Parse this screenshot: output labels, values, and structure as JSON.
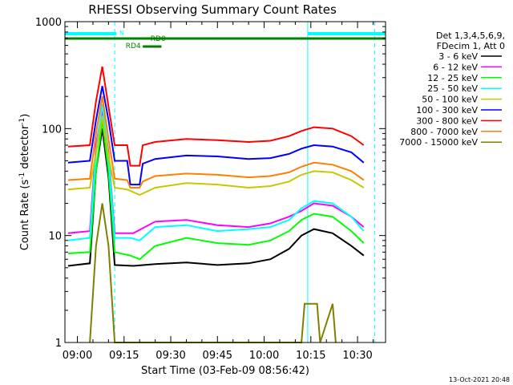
{
  "chart_data": {
    "type": "line",
    "title": "RHESSI Observing Summary Count Rates",
    "xlabel": "Start Time (03-Feb-09 08:56:42)",
    "ylabel_main": "Count Rate (s",
    "ylabel_sup1": "-1",
    "ylabel_mid": " detector",
    "ylabel_sup2": "-1",
    "ylabel_end": ")",
    "y_scale": "log",
    "ylim": [
      1,
      1000
    ],
    "xlim_min": [
      -4,
      99
    ],
    "x_ticks": [
      {
        "v": 0,
        "label": "09:00"
      },
      {
        "v": 15,
        "label": "09:15"
      },
      {
        "v": 30,
        "label": "09:30"
      },
      {
        "v": 45,
        "label": "09:45"
      },
      {
        "v": 60,
        "label": "10:00"
      },
      {
        "v": 75,
        "label": "10:15"
      },
      {
        "v": 90,
        "label": "10:30"
      }
    ],
    "y_ticks": [
      {
        "v": 1,
        "label": "1"
      },
      {
        "v": 10,
        "label": "10"
      },
      {
        "v": 100,
        "label": "100"
      },
      {
        "v": 1000,
        "label": "1000"
      }
    ],
    "legend_header": [
      "Det 1,3,4,5,6,9,",
      "FDecim 1, Att 0"
    ],
    "legend_placement": "right",
    "series": [
      {
        "name": "3 - 6 keV",
        "color": "#000000",
        "values": [
          [
            -3,
            5.2
          ],
          [
            4,
            5.5
          ],
          [
            6,
            40
          ],
          [
            8,
            100
          ],
          [
            10,
            35
          ],
          [
            12,
            5.3
          ],
          [
            18,
            5.2
          ],
          [
            25,
            5.4
          ],
          [
            35,
            5.6
          ],
          [
            45,
            5.3
          ],
          [
            55,
            5.5
          ],
          [
            62,
            6
          ],
          [
            68,
            7.5
          ],
          [
            72,
            10
          ],
          [
            76,
            11.5
          ],
          [
            82,
            10.5
          ],
          [
            88,
            8
          ],
          [
            92,
            6.5
          ]
        ]
      },
      {
        "name": "6 - 12 keV",
        "color": "#ff00ff",
        "values": [
          [
            -3,
            10.5
          ],
          [
            4,
            11
          ],
          [
            6,
            70
          ],
          [
            8,
            150
          ],
          [
            10,
            60
          ],
          [
            12,
            10.5
          ],
          [
            18,
            10.5
          ],
          [
            25,
            13.5
          ],
          [
            35,
            14
          ],
          [
            45,
            12.5
          ],
          [
            55,
            12
          ],
          [
            62,
            13
          ],
          [
            68,
            15
          ],
          [
            72,
            17
          ],
          [
            76,
            20
          ],
          [
            82,
            19
          ],
          [
            88,
            15
          ],
          [
            92,
            12
          ]
        ]
      },
      {
        "name": "12 - 25 keV",
        "color": "#00ff00",
        "values": [
          [
            -3,
            6.8
          ],
          [
            4,
            7
          ],
          [
            6,
            40
          ],
          [
            8,
            120
          ],
          [
            10,
            40
          ],
          [
            12,
            7
          ],
          [
            17,
            6.5
          ],
          [
            20,
            6
          ],
          [
            25,
            8
          ],
          [
            35,
            9.5
          ],
          [
            45,
            8.5
          ],
          [
            55,
            8.2
          ],
          [
            62,
            9
          ],
          [
            68,
            11
          ],
          [
            72,
            14
          ],
          [
            76,
            16
          ],
          [
            82,
            15
          ],
          [
            88,
            11
          ],
          [
            92,
            8.5
          ]
        ]
      },
      {
        "name": "25 - 50 keV",
        "color": "#00ffff",
        "values": [
          [
            -3,
            9
          ],
          [
            4,
            9.5
          ],
          [
            6,
            60
          ],
          [
            8,
            170
          ],
          [
            10,
            55
          ],
          [
            12,
            9.5
          ],
          [
            17,
            9.5
          ],
          [
            20,
            9
          ],
          [
            25,
            12
          ],
          [
            35,
            12.5
          ],
          [
            45,
            11
          ],
          [
            55,
            11.5
          ],
          [
            62,
            12
          ],
          [
            68,
            14
          ],
          [
            72,
            18
          ],
          [
            76,
            21
          ],
          [
            82,
            20
          ],
          [
            88,
            15
          ],
          [
            92,
            11
          ]
        ]
      },
      {
        "name": "50 - 100 keV",
        "color": "#c8c800",
        "values": [
          [
            -3,
            27
          ],
          [
            4,
            28
          ],
          [
            6,
            60
          ],
          [
            8,
            130
          ],
          [
            10,
            55
          ],
          [
            12,
            28
          ],
          [
            16,
            27
          ],
          [
            20,
            24
          ],
          [
            25,
            28
          ],
          [
            35,
            31
          ],
          [
            45,
            30
          ],
          [
            55,
            28
          ],
          [
            62,
            29
          ],
          [
            68,
            32
          ],
          [
            72,
            37
          ],
          [
            76,
            40
          ],
          [
            82,
            39
          ],
          [
            88,
            33
          ],
          [
            92,
            28
          ]
        ]
      },
      {
        "name": "100 - 300 keV",
        "color": "#0000ff",
        "values": [
          [
            -3,
            48
          ],
          [
            4,
            50
          ],
          [
            6,
            120
          ],
          [
            8,
            250
          ],
          [
            10,
            120
          ],
          [
            12,
            50
          ],
          [
            16,
            50
          ],
          [
            17,
            30
          ],
          [
            20,
            30
          ],
          [
            21,
            47
          ],
          [
            25,
            52
          ],
          [
            35,
            56
          ],
          [
            45,
            55
          ],
          [
            55,
            52
          ],
          [
            62,
            53
          ],
          [
            68,
            58
          ],
          [
            72,
            65
          ],
          [
            76,
            70
          ],
          [
            82,
            68
          ],
          [
            88,
            60
          ],
          [
            92,
            48
          ]
        ]
      },
      {
        "name": "300 - 800 keV",
        "color": "#ff0000",
        "values": [
          [
            -3,
            68
          ],
          [
            4,
            70
          ],
          [
            6,
            180
          ],
          [
            8,
            380
          ],
          [
            10,
            160
          ],
          [
            12,
            70
          ],
          [
            16,
            70
          ],
          [
            17,
            45
          ],
          [
            20,
            45
          ],
          [
            21,
            70
          ],
          [
            25,
            75
          ],
          [
            35,
            80
          ],
          [
            45,
            78
          ],
          [
            55,
            75
          ],
          [
            62,
            77
          ],
          [
            68,
            85
          ],
          [
            72,
            95
          ],
          [
            76,
            103
          ],
          [
            82,
            100
          ],
          [
            88,
            85
          ],
          [
            92,
            70
          ]
        ]
      },
      {
        "name": "800 - 7000 keV",
        "color": "#ff8000",
        "values": [
          [
            -3,
            33
          ],
          [
            4,
            34
          ],
          [
            6,
            90
          ],
          [
            8,
            200
          ],
          [
            10,
            80
          ],
          [
            12,
            34
          ],
          [
            16,
            33
          ],
          [
            17,
            28
          ],
          [
            20,
            28
          ],
          [
            21,
            32
          ],
          [
            25,
            36
          ],
          [
            35,
            38
          ],
          [
            45,
            37
          ],
          [
            55,
            35
          ],
          [
            62,
            36
          ],
          [
            68,
            39
          ],
          [
            72,
            44
          ],
          [
            76,
            48
          ],
          [
            82,
            46
          ],
          [
            88,
            40
          ],
          [
            92,
            33
          ]
        ]
      },
      {
        "name": "7000 - 15000 keV",
        "color": "#808000",
        "values": [
          [
            4,
            1
          ],
          [
            6,
            8
          ],
          [
            8,
            20
          ],
          [
            10,
            8
          ],
          [
            12,
            1
          ],
          [
            72,
            1
          ],
          [
            73,
            2.3
          ],
          [
            77,
            2.3
          ],
          [
            78,
            1
          ],
          [
            82,
            2.3
          ],
          [
            83,
            1
          ]
        ]
      }
    ],
    "annotations": {
      "n_label": "N",
      "rd0_label": "RD0",
      "rd4_label": "RD4"
    },
    "timestamp": "13-Oct-2021 20:48"
  }
}
